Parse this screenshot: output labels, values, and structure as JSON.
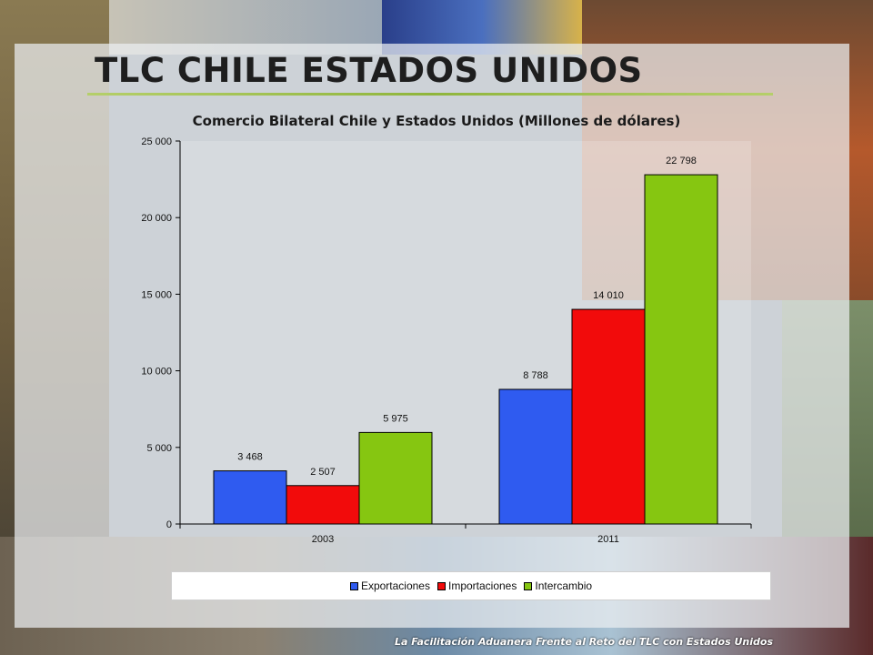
{
  "slide": {
    "title": "TLC CHILE ESTADOS UNIDOS",
    "footer": "La Facilitación Aduanera  Frente al Reto del TLC con Estados Unidos"
  },
  "chart_data": {
    "type": "bar",
    "title": "Comercio Bilateral Chile y Estados Unidos (Millones de dólares)",
    "xlabel": "",
    "ylabel": "",
    "categories": [
      "2003",
      "2011"
    ],
    "series": [
      {
        "name": "Exportaciones",
        "values": [
          3468,
          8788
        ],
        "color": "#2f5bf0",
        "labels": [
          "3 468",
          "8 788"
        ]
      },
      {
        "name": "Importaciones",
        "values": [
          2507,
          14010
        ],
        "color": "#f20b0b",
        "labels": [
          "2 507",
          "14 010"
        ]
      },
      {
        "name": "Intercambio",
        "values": [
          5975,
          22798
        ],
        "color": "#86c611",
        "labels": [
          "5 975",
          "22 798"
        ]
      }
    ],
    "ylim": [
      0,
      25000
    ],
    "yticks": [
      {
        "value": 0,
        "label": "0"
      },
      {
        "value": 5000,
        "label": "5 000"
      },
      {
        "value": 10000,
        "label": "10 000"
      },
      {
        "value": 15000,
        "label": "15 000"
      },
      {
        "value": 20000,
        "label": "20 000"
      },
      {
        "value": 25000,
        "label": "25 000"
      }
    ],
    "grid": false,
    "legend_position": "bottom"
  }
}
